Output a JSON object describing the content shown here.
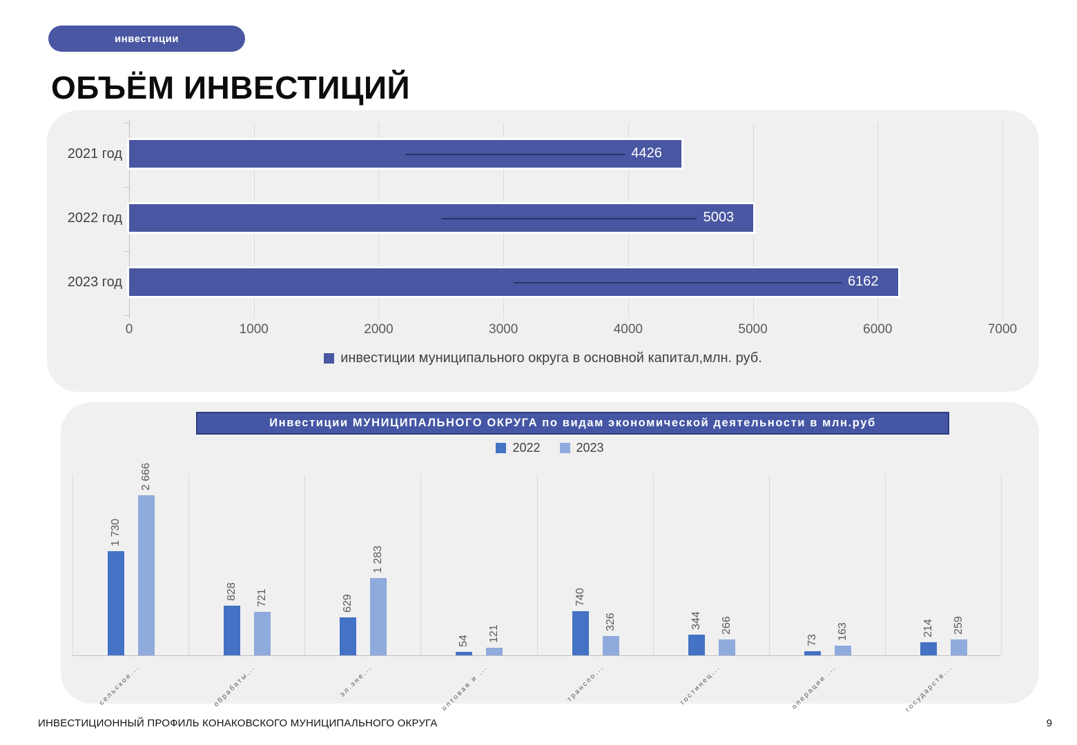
{
  "badge": {
    "label": "инвестиции"
  },
  "page_title": "ОБЪЁМ ИНВЕСТИЦИЙ",
  "footer": {
    "text": "ИНВЕСТИЦИОННЫЙ ПРОФИЛЬ КОНАКОВСКОГО МУНИЦИПАЛЬНОГО ОКРУГА",
    "page_number": "9"
  },
  "colors": {
    "badge_bg": "#4a57a3",
    "panel_bg": "#f0f0f0",
    "chart1_bar": "#4956a1",
    "chart1_leader_line": "#1f3864",
    "chart2_title_bg": "#4456a4",
    "chart2_title_border": "#2c3c7c",
    "series_2022": "#4472c4",
    "series_2023": "#8faadc",
    "gridline": "#d9d9d9",
    "axis": "#bfbfbf",
    "axis_text": "#595959"
  },
  "chart_data": [
    {
      "type": "bar",
      "orientation": "horizontal",
      "categories": [
        "2021 год",
        "2022 год",
        "2023 год"
      ],
      "values": [
        4426,
        5003,
        6162
      ],
      "value_labels": [
        "4426",
        "5003",
        "6162"
      ],
      "xlim": [
        0,
        7000
      ],
      "xticks": [
        "0",
        "1000",
        "2000",
        "3000",
        "4000",
        "5000",
        "6000",
        "7000"
      ],
      "grid": true,
      "legend_position": "bottom",
      "legend": [
        "инвестиции муниципального округа в основной  капитал,млн. руб."
      ],
      "bar_color": "#4956a1"
    },
    {
      "type": "bar",
      "orientation": "vertical",
      "title": "Инвестиции МУНИЦИПАЛЬНОГО ОКРУГА по видам экономической  деятельности в млн.руб",
      "categories": [
        "сельское...",
        "обрабаты...",
        "эл.эне...",
        "оптовая и ...",
        "транспо...",
        "гостинец...",
        "операции ...",
        "государств..."
      ],
      "series": [
        {
          "name": "2022",
          "color": "#4472c4",
          "values": [
            1730,
            828,
            629,
            54,
            740,
            344,
            73,
            214
          ],
          "labels": [
            "1 730",
            "828",
            "629",
            "54",
            "740",
            "344",
            "73",
            "214"
          ]
        },
        {
          "name": "2023",
          "color": "#8faadc",
          "values": [
            2666,
            721,
            1283,
            121,
            326,
            266,
            163,
            259
          ],
          "labels": [
            "2 666",
            "721",
            "1 283",
            "121",
            "326",
            "266",
            "163",
            "259"
          ]
        }
      ],
      "ylim": [
        0,
        3000
      ],
      "grid": "category-separators",
      "legend_position": "top"
    }
  ]
}
